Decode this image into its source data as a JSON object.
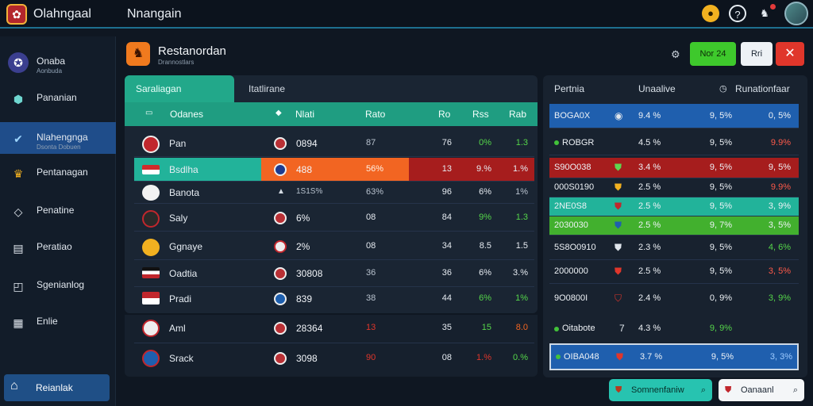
{
  "topbar": {
    "app_title": "Olahngaal",
    "page_title": "Nnangain",
    "coin_icon": "coin-icon",
    "help_icon": "help-icon",
    "notification_icon": "bell-icon"
  },
  "sidebar": {
    "items": [
      {
        "label": "Onaba",
        "sub": "Aonbuda",
        "icon": "shield-icon"
      },
      {
        "label": "Pananian",
        "sub": "",
        "icon": "cube-icon"
      },
      {
        "label": "Nlahengnga",
        "sub": "Dsonta Dobuen",
        "icon": "check-icon"
      },
      {
        "label": "Pentanagan",
        "sub": "",
        "icon": "lion-icon"
      },
      {
        "label": "Penatine",
        "sub": "",
        "icon": "diamond-icon"
      },
      {
        "label": "Peratiao",
        "sub": "",
        "icon": "document-icon"
      },
      {
        "label": "Sgenianlog",
        "sub": "",
        "icon": "chat-icon"
      },
      {
        "label": "Enlie",
        "sub": "",
        "icon": "grid-icon"
      }
    ],
    "bottom_label": "Reianlak"
  },
  "header": {
    "title": "Restanordan",
    "subtitle": "Drannostlars",
    "btn_primary": "Nor 24",
    "btn_secondary": "Rri"
  },
  "main": {
    "tabs": [
      "Saraliagan",
      "Itatlirane"
    ],
    "columns": [
      "Odanes",
      "Nlati",
      "Rato",
      "Ro",
      "Rss",
      "Rab"
    ],
    "rows": [
      {
        "team": "Pan",
        "v1": "0894",
        "v2": "87",
        "v3": "76",
        "v4": "0%",
        "v5": "1.3"
      },
      {
        "team": "Bsdlha",
        "v1": "488",
        "v2": "56%",
        "v3": "13",
        "v4": "9.%",
        "v5": "1.%"
      },
      {
        "team": "Banota",
        "v1": "1S1S%",
        "v2": "63%",
        "v3": "96",
        "v4": "6%",
        "v5": "1%"
      },
      {
        "team": "Saly",
        "v1": "6%",
        "v2": "08",
        "v3": "84",
        "v4": "9%",
        "v5": "1.3"
      },
      {
        "team": "Ggnaye",
        "v1": "2%",
        "v2": "08",
        "v3": "34",
        "v4": "8.5",
        "v5": "1.5"
      },
      {
        "team": "Oadtia",
        "v1": "30808",
        "v2": "36",
        "v3": "36",
        "v4": "6%",
        "v5": "3.%"
      },
      {
        "team": "Pradi",
        "v1": "839",
        "v2": "38",
        "v3": "44",
        "v4": "6%",
        "v5": "1%"
      },
      {
        "team": "Aml",
        "v1": "28364",
        "v2": "13",
        "v3": "35",
        "v4": "15",
        "v5": "8.0"
      },
      {
        "team": "Srack",
        "v1": "3098",
        "v2": "90",
        "v3": "08",
        "v4": "1.%",
        "v5": "0.%"
      }
    ]
  },
  "right": {
    "headers": [
      "Pertnia",
      "Unaalive",
      "Runationfaar"
    ],
    "rows": [
      {
        "name": "BOGA0X",
        "v1": "9.4 %",
        "v2": "9, 5%",
        "v3": "0, 5%"
      },
      {
        "name": "ROBGR",
        "v1": "4.5 %",
        "v2": "9, 5%",
        "v3": "9.9%"
      },
      {
        "name": "S90O038",
        "v1": "3.4 %",
        "v2": "9, 5%",
        "v3": "9, 5%"
      },
      {
        "name": "000S0190",
        "v1": "2.5 %",
        "v2": "9, 5%",
        "v3": "9.9%"
      },
      {
        "name": "2NE0S8",
        "v1": "2.5 %",
        "v2": "9, 5%",
        "v3": "3, 9%"
      },
      {
        "name": "2030030",
        "v1": "2.5 %",
        "v2": "9, 7%",
        "v3": "3, 5%"
      },
      {
        "name": "5S8O0910",
        "v1": "2.3 %",
        "v2": "9, 5%",
        "v3": "4, 6%"
      },
      {
        "name": "2000000",
        "v1": "2.5 %",
        "v2": "9, 5%",
        "v3": "3, 5%"
      },
      {
        "name": "9O0800I",
        "v1": "2.4 %",
        "v2": "0, 9%",
        "v3": "3, 9%"
      },
      {
        "name": "Oitabote",
        "v1": "4.3 %",
        "v2": "9, 9%",
        "v3": ""
      },
      {
        "name": "OIBA048",
        "v1": "3.7 %",
        "v2": "9, 5%",
        "v3": "3, 3%"
      }
    ],
    "footer_btn1": "Somnenfaniw",
    "footer_btn2": "Oanaanl"
  },
  "colors": {
    "teal": "#22a88a",
    "orange": "#f26522",
    "red": "#a61d1d",
    "green": "#42b02e",
    "blue": "#1f5fae"
  }
}
